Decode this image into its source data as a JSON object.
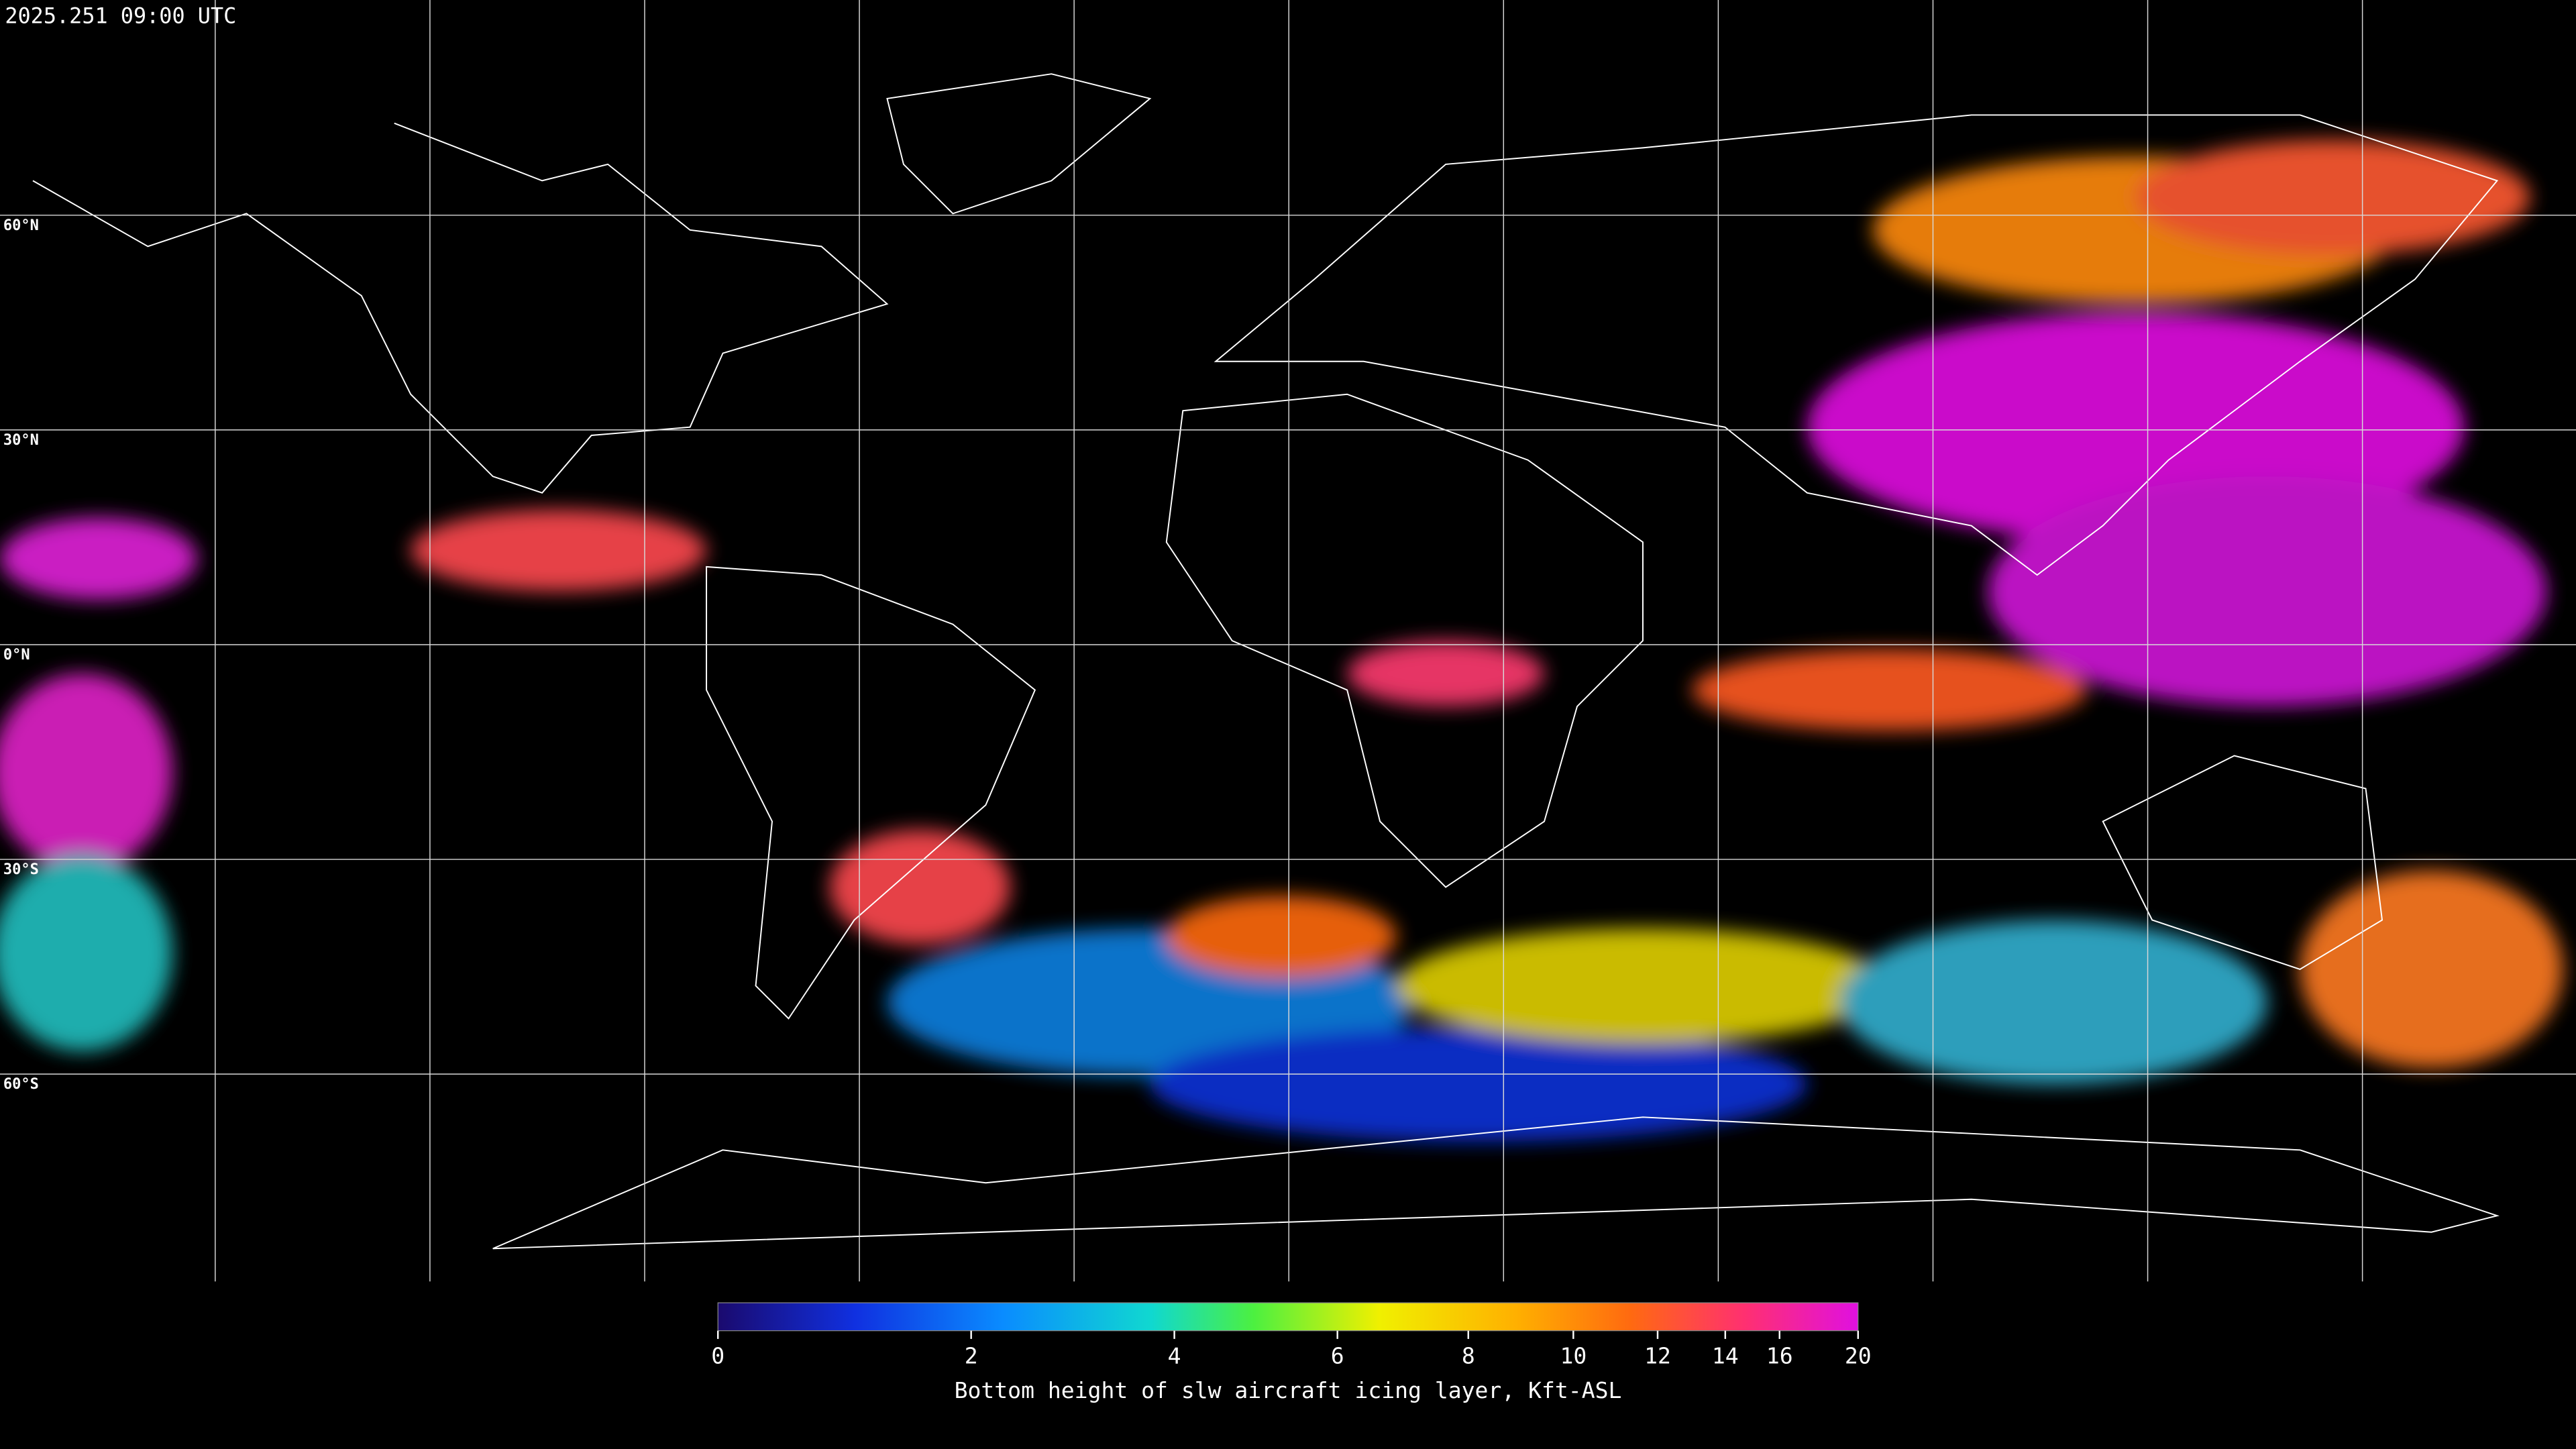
{
  "header": {
    "timestamp": "2025.251 09:00 UTC"
  },
  "map": {
    "lat_labels": [
      "60°N",
      "30°N",
      "0°N",
      "30°S",
      "60°S"
    ]
  },
  "colorbar": {
    "ticks": [
      0,
      2,
      4,
      6,
      8,
      10,
      12,
      14,
      16,
      20
    ],
    "label": "Bottom height of slw aircraft icing layer, Kft-ASL"
  }
}
